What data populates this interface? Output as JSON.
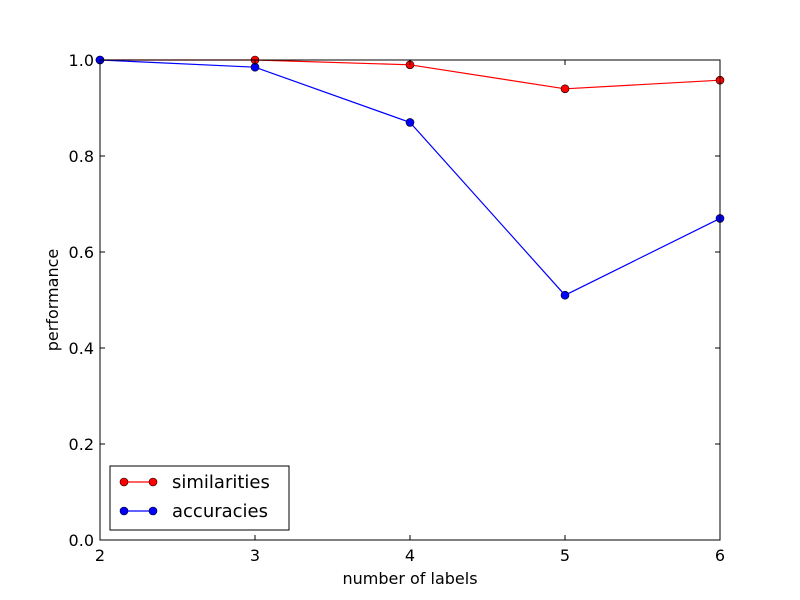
{
  "chart_data": {
    "type": "line",
    "title": "",
    "xlabel": "number of labels",
    "ylabel": "performance",
    "x": [
      2,
      3,
      4,
      5,
      6
    ],
    "xlim": [
      2,
      6
    ],
    "ylim": [
      0.0,
      1.0
    ],
    "xticks": [
      "2",
      "3",
      "4",
      "5",
      "6"
    ],
    "yticks": [
      "0.0",
      "0.2",
      "0.4",
      "0.6",
      "0.8",
      "1.0"
    ],
    "grid": false,
    "legend_position": "lower-left",
    "series": [
      {
        "name": "similarities",
        "color": "#ff0000",
        "marker_color": "#ff0000",
        "values": [
          1.0,
          1.0,
          0.99,
          0.94,
          0.958
        ]
      },
      {
        "name": "accuracies",
        "color": "#0000ff",
        "marker_color": "#0000ff",
        "values": [
          1.0,
          0.985,
          0.87,
          0.51,
          0.67
        ]
      }
    ]
  }
}
